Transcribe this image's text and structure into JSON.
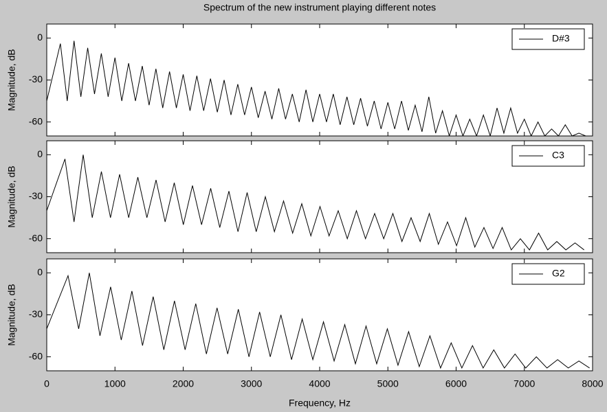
{
  "chart_data": [
    {
      "type": "line",
      "title": "Spectrum of the new instrument playing different notes",
      "y_label": "Magnitude, dB",
      "x": [
        0,
        200,
        300,
        400,
        500,
        600,
        700,
        800,
        900,
        1000,
        1100,
        1200,
        1300,
        1400,
        1500,
        1600,
        1700,
        1800,
        1900,
        2000,
        2100,
        2200,
        2300,
        2400,
        2500,
        2600,
        2700,
        2800,
        2900,
        3000,
        3100,
        3200,
        3300,
        3400,
        3500,
        3600,
        3700,
        3800,
        3900,
        4000,
        4100,
        4200,
        4300,
        4400,
        4500,
        4600,
        4700,
        4800,
        4900,
        5000,
        5100,
        5200,
        5300,
        5400,
        5500,
        5600,
        5700,
        5800,
        5900,
        6000,
        6100,
        6200,
        6300,
        6400,
        6500,
        6600,
        6700,
        6800,
        6900,
        7000,
        7100,
        7200,
        7300,
        7400,
        7500,
        7600,
        7700,
        7800,
        7900
      ],
      "series": [
        {
          "name": "D#3",
          "color": "#000000",
          "values": [
            -45,
            -4,
            -45,
            -2,
            -42,
            -7,
            -40,
            -11,
            -42,
            -14,
            -45,
            -18,
            -45,
            -20,
            -48,
            -22,
            -50,
            -24,
            -50,
            -26,
            -52,
            -27,
            -52,
            -29,
            -53,
            -30,
            -55,
            -33,
            -55,
            -35,
            -57,
            -38,
            -58,
            -36,
            -58,
            -40,
            -60,
            -37,
            -60,
            -40,
            -60,
            -40,
            -62,
            -42,
            -62,
            -43,
            -63,
            -45,
            -65,
            -46,
            -65,
            -45,
            -66,
            -48,
            -67,
            -42,
            -68,
            -52,
            -70,
            -55,
            -70,
            -58,
            -70,
            -55,
            -70,
            -50,
            -68,
            -50,
            -68,
            -58,
            -70,
            -60,
            -70,
            -65,
            -70,
            -62,
            -70,
            -68,
            -70
          ]
        }
      ],
      "xlim": [
        0,
        8000
      ],
      "ylim": [
        -70,
        10
      ],
      "xticks": [
        0,
        1000,
        2000,
        3000,
        4000,
        5000,
        6000,
        7000,
        8000
      ],
      "yticks": [
        -60,
        -30,
        0
      ],
      "legend": "upper right"
    },
    {
      "type": "line",
      "y_label": "Magnitude, dB",
      "x": [
        0,
        267,
        400,
        534,
        667,
        801,
        934,
        1068,
        1201,
        1335,
        1468,
        1602,
        1735,
        1869,
        2002,
        2136,
        2269,
        2403,
        2536,
        2670,
        2803,
        2937,
        3070,
        3204,
        3337,
        3471,
        3604,
        3738,
        3871,
        4005,
        4138,
        4272,
        4405,
        4539,
        4672,
        4806,
        4939,
        5073,
        5206,
        5340,
        5473,
        5607,
        5740,
        5874,
        6007,
        6141,
        6274,
        6408,
        6541,
        6675,
        6808,
        6942,
        7075,
        7209,
        7342,
        7476,
        7609,
        7743,
        7876
      ],
      "series": [
        {
          "name": "C3",
          "color": "#000000",
          "values": [
            -40,
            -3,
            -48,
            0,
            -45,
            -12,
            -45,
            -14,
            -45,
            -16,
            -45,
            -18,
            -48,
            -20,
            -50,
            -22,
            -50,
            -24,
            -52,
            -26,
            -55,
            -27,
            -55,
            -30,
            -55,
            -33,
            -56,
            -35,
            -58,
            -37,
            -58,
            -40,
            -60,
            -40,
            -60,
            -42,
            -60,
            -42,
            -62,
            -45,
            -62,
            -42,
            -64,
            -48,
            -65,
            -45,
            -66,
            -52,
            -67,
            -52,
            -68,
            -60,
            -68,
            -56,
            -68,
            -62,
            -68,
            -63,
            -68
          ]
        }
      ],
      "xlim": [
        0,
        8000
      ],
      "ylim": [
        -70,
        10
      ],
      "xticks": [
        0,
        1000,
        2000,
        3000,
        4000,
        5000,
        6000,
        7000,
        8000
      ],
      "yticks": [
        -60,
        -30,
        0
      ],
      "legend": "upper right"
    },
    {
      "type": "line",
      "y_label": "Magnitude, dB",
      "x_label": "Frequency, Hz",
      "x": [
        0,
        312,
        468,
        624,
        780,
        936,
        1092,
        1248,
        1404,
        1560,
        1716,
        1872,
        2028,
        2184,
        2340,
        2496,
        2652,
        2808,
        2964,
        3120,
        3276,
        3432,
        3588,
        3744,
        3900,
        4056,
        4212,
        4368,
        4524,
        4680,
        4836,
        4992,
        5148,
        5304,
        5460,
        5616,
        5772,
        5928,
        6084,
        6240,
        6396,
        6552,
        6708,
        6864,
        7020,
        7176,
        7332,
        7488,
        7644,
        7800,
        7956
      ],
      "series": [
        {
          "name": "G2",
          "color": "#000000",
          "values": [
            -40,
            -2,
            -40,
            0,
            -45,
            -10,
            -48,
            -13,
            -52,
            -17,
            -55,
            -20,
            -55,
            -22,
            -58,
            -25,
            -58,
            -26,
            -60,
            -28,
            -60,
            -30,
            -62,
            -33,
            -62,
            -35,
            -63,
            -37,
            -65,
            -38,
            -65,
            -40,
            -66,
            -42,
            -67,
            -45,
            -68,
            -50,
            -68,
            -52,
            -68,
            -55,
            -68,
            -58,
            -68,
            -60,
            -68,
            -62,
            -68,
            -63,
            -68
          ]
        }
      ],
      "xlim": [
        0,
        8000
      ],
      "ylim": [
        -70,
        10
      ],
      "xticks": [
        0,
        1000,
        2000,
        3000,
        4000,
        5000,
        6000,
        7000,
        8000
      ],
      "yticks": [
        -60,
        -30,
        0
      ],
      "legend": "upper right"
    }
  ]
}
